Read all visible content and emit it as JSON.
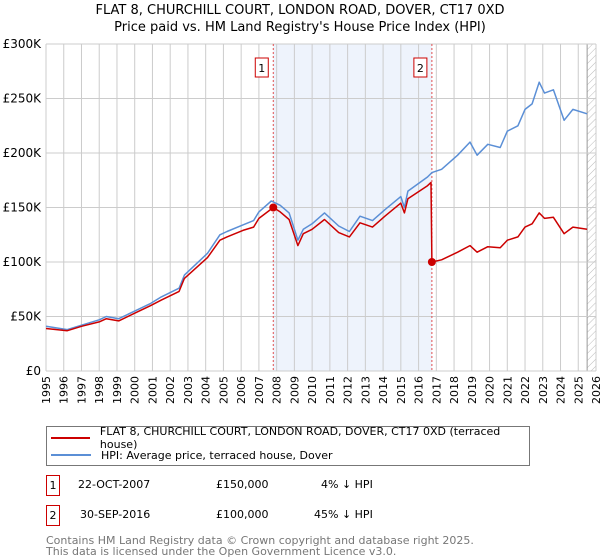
{
  "title_line1": "FLAT 8, CHURCHILL COURT, LONDON ROAD, DOVER, CT17 0XD",
  "title_line2": "Price paid vs. HM Land Registry's House Price Index (HPI)",
  "colors": {
    "property": "#cc0000",
    "hpi": "#5b8fd6",
    "shade": "#eef3fc"
  },
  "chart_data": {
    "type": "line",
    "xlim": [
      1995,
      2026
    ],
    "ylim": [
      0,
      300000
    ],
    "x_ticks": [
      "1995",
      "1996",
      "1997",
      "1998",
      "1999",
      "2000",
      "2001",
      "2002",
      "2003",
      "2004",
      "2005",
      "2006",
      "2007",
      "2008",
      "2009",
      "2010",
      "2011",
      "2012",
      "2013",
      "2014",
      "2015",
      "2016",
      "2017",
      "2018",
      "2019",
      "2020",
      "2021",
      "2022",
      "2023",
      "2024",
      "2025",
      "2026"
    ],
    "y_ticks": [
      {
        "v": 0,
        "label": "£0"
      },
      {
        "v": 50000,
        "label": "£50K"
      },
      {
        "v": 100000,
        "label": "£100K"
      },
      {
        "v": 150000,
        "label": "£150K"
      },
      {
        "v": 200000,
        "label": "£200K"
      },
      {
        "v": 250000,
        "label": "£250K"
      },
      {
        "v": 300000,
        "label": "£300K"
      }
    ],
    "grid": true,
    "shaded_range": [
      2007.81,
      2016.75
    ],
    "hatched_from": 2025.5,
    "series": [
      {
        "name": "FLAT 8, CHURCHILL COURT, LONDON ROAD, DOVER, CT17 0XD (terraced house)",
        "key": "property",
        "points": [
          [
            1995,
            39
          ],
          [
            1996.2,
            37
          ],
          [
            1997,
            41
          ],
          [
            1998,
            45
          ],
          [
            1998.4,
            48
          ],
          [
            1999.1,
            46
          ],
          [
            2000,
            53
          ],
          [
            2000.9,
            60
          ],
          [
            2001.5,
            65
          ],
          [
            2002.5,
            73
          ],
          [
            2002.8,
            85
          ],
          [
            2004.1,
            104
          ],
          [
            2004.8,
            120
          ],
          [
            2005.2,
            123
          ],
          [
            2006.1,
            129
          ],
          [
            2006.7,
            132
          ],
          [
            2007,
            140
          ],
          [
            2007.81,
            150
          ],
          [
            2008.2,
            146
          ],
          [
            2008.7,
            139
          ],
          [
            2009.2,
            115
          ],
          [
            2009.5,
            126
          ],
          [
            2010,
            130
          ],
          [
            2010.7,
            139
          ],
          [
            2011.5,
            127
          ],
          [
            2012.1,
            123
          ],
          [
            2012.7,
            136
          ],
          [
            2013.4,
            132
          ],
          [
            2014.1,
            142
          ],
          [
            2015,
            154
          ],
          [
            2015.2,
            145
          ],
          [
            2015.4,
            158
          ],
          [
            2016.5,
            170
          ],
          [
            2016.7,
            173
          ],
          [
            2016.75,
            100
          ],
          [
            2017.3,
            102
          ],
          [
            2018.2,
            109
          ],
          [
            2018.9,
            115
          ],
          [
            2019.3,
            109
          ],
          [
            2019.9,
            114
          ],
          [
            2020.6,
            113
          ],
          [
            2021,
            120
          ],
          [
            2021.6,
            123
          ],
          [
            2022,
            132
          ],
          [
            2022.4,
            135
          ],
          [
            2022.8,
            145
          ],
          [
            2023.1,
            140
          ],
          [
            2023.6,
            141
          ],
          [
            2024.2,
            126
          ],
          [
            2024.7,
            132
          ],
          [
            2025.5,
            130
          ]
        ]
      },
      {
        "name": "HPI: Average price, terraced house, Dover",
        "key": "hpi",
        "points": [
          [
            1995,
            41
          ],
          [
            1996.2,
            38
          ],
          [
            1997,
            42
          ],
          [
            1998,
            47
          ],
          [
            1998.4,
            50
          ],
          [
            1999.1,
            48
          ],
          [
            2000,
            55
          ],
          [
            2000.9,
            62
          ],
          [
            2001.5,
            68
          ],
          [
            2002.5,
            76
          ],
          [
            2002.8,
            88
          ],
          [
            2004.1,
            108
          ],
          [
            2004.8,
            125
          ],
          [
            2005.2,
            128
          ],
          [
            2006.1,
            134
          ],
          [
            2006.7,
            138
          ],
          [
            2007,
            146
          ],
          [
            2007.7,
            156
          ],
          [
            2008.2,
            152
          ],
          [
            2008.7,
            145
          ],
          [
            2009.2,
            120
          ],
          [
            2009.5,
            130
          ],
          [
            2010,
            135
          ],
          [
            2010.7,
            145
          ],
          [
            2011.5,
            133
          ],
          [
            2012.1,
            128
          ],
          [
            2012.7,
            142
          ],
          [
            2013.4,
            138
          ],
          [
            2014.1,
            148
          ],
          [
            2015,
            160
          ],
          [
            2015.2,
            150
          ],
          [
            2015.4,
            165
          ],
          [
            2016.5,
            178
          ],
          [
            2016.75,
            182
          ],
          [
            2017.3,
            185
          ],
          [
            2018.2,
            198
          ],
          [
            2018.9,
            210
          ],
          [
            2019.3,
            198
          ],
          [
            2019.9,
            208
          ],
          [
            2020.6,
            205
          ],
          [
            2021,
            220
          ],
          [
            2021.6,
            225
          ],
          [
            2022,
            240
          ],
          [
            2022.4,
            245
          ],
          [
            2022.8,
            265
          ],
          [
            2023.1,
            255
          ],
          [
            2023.6,
            258
          ],
          [
            2024.2,
            230
          ],
          [
            2024.7,
            240
          ],
          [
            2025.5,
            236
          ]
        ]
      }
    ],
    "sales": [
      {
        "id": "1",
        "x": 2007.81,
        "y": 150000
      },
      {
        "id": "2",
        "x": 2016.75,
        "y": 100000
      }
    ]
  },
  "legend": {
    "property": "FLAT 8, CHURCHILL COURT, LONDON ROAD, DOVER, CT17 0XD (terraced house)",
    "hpi": "HPI: Average price, terraced house, Dover"
  },
  "transactions": [
    {
      "id": "1",
      "date": "22-OCT-2007",
      "price": "£150,000",
      "hpi": "4% ↓ HPI"
    },
    {
      "id": "2",
      "date": "30-SEP-2016",
      "price": "£100,000",
      "hpi": "45% ↓ HPI"
    }
  ],
  "footer": {
    "line1": "Contains HM Land Registry data © Crown copyright and database right 2025.",
    "line2": "This data is licensed under the Open Government Licence v3.0."
  }
}
